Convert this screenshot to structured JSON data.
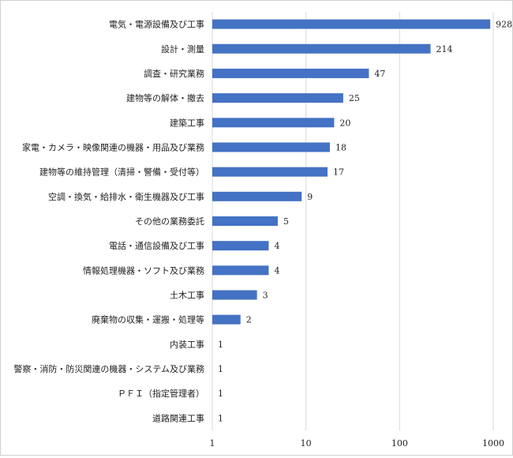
{
  "chart_data": {
    "type": "bar",
    "orientation": "horizontal",
    "x_scale": "log",
    "xlim": [
      1,
      1000
    ],
    "x_ticks": [
      "1",
      "10",
      "100",
      "1000"
    ],
    "grid": true,
    "bar_color": "#4472c4",
    "categories": [
      "電気・電源設備及び工事",
      "設計・測量",
      "調査・研究業務",
      "建物等の解体・撤去",
      "建築工事",
      "家電・カメラ・映像関連の機器・用品及び業務",
      "建物等の維持管理（清掃・警備・受付等）",
      "空調・換気・給排水・衛生機器及び工事",
      "その他の業務委託",
      "電話・通信設備及び工事",
      "情報処理機器・ソフト及び業務",
      "土木工事",
      "廃棄物の収集・運搬・処理等",
      "内装工事",
      "警察・消防・防災関連の機器・システム及び業務",
      "ＰＦＩ（指定管理者）",
      "道路関連工事"
    ],
    "values": [
      928,
      214,
      47,
      25,
      20,
      18,
      17,
      9,
      5,
      4,
      4,
      3,
      2,
      1,
      1,
      1,
      1
    ]
  }
}
